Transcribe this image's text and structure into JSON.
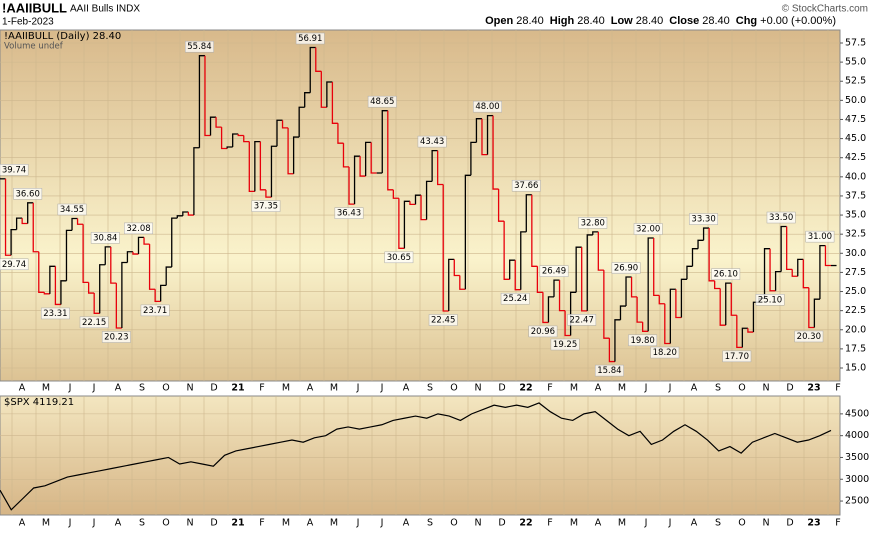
{
  "header": {
    "symbol": "!AAIIBULL",
    "name": "AAII Bulls INDX",
    "date": "1-Feb-2023",
    "ohlc": [
      "Open",
      "28.40",
      "High",
      "28.40",
      "Low",
      "28.40",
      "Close",
      "28.40",
      "Chg",
      "+0.00 (+0.00%)"
    ],
    "copyright": "© StockCharts.com"
  },
  "chart_data": [
    {
      "type": "step",
      "legend": [
        "!AAIIBULL (Daily) 28.40",
        "Volume undef"
      ],
      "up_color": "#000000",
      "down_color": "#e8000b",
      "months": [
        "A",
        "M",
        "J",
        "J",
        "A",
        "S",
        "O",
        "N",
        "D",
        "21",
        "F",
        "M",
        "A",
        "M",
        "J",
        "J",
        "A",
        "S",
        "O",
        "N",
        "D",
        "22",
        "F",
        "M",
        "A",
        "M",
        "J",
        "J",
        "A",
        "S",
        "O",
        "N",
        "D",
        "23",
        "F"
      ],
      "values": [
        39.74,
        29.74,
        33.1,
        34.6,
        33.9,
        36.6,
        30.2,
        24.9,
        24.7,
        28.3,
        23.31,
        26.4,
        33.0,
        34.55,
        33.8,
        26.2,
        24.8,
        22.15,
        28.5,
        30.84,
        26.1,
        20.23,
        28.8,
        30.2,
        29.9,
        32.08,
        31.2,
        25.3,
        23.71,
        25.8,
        28.2,
        34.6,
        34.9,
        35.4,
        35.0,
        43.8,
        55.84,
        45.4,
        47.8,
        46.5,
        43.7,
        43.9,
        45.6,
        45.4,
        44.6,
        38.1,
        44.6,
        38.3,
        37.35,
        44.0,
        47.4,
        46.4,
        40.4,
        45.2,
        49.1,
        51.0,
        56.91,
        53.8,
        49.1,
        52.4,
        47.0,
        44.4,
        41.3,
        36.43,
        42.7,
        40.1,
        44.5,
        40.5,
        40.5,
        48.65,
        38.3,
        37.2,
        30.65,
        36.8,
        36.4,
        37.6,
        34.4,
        39.4,
        43.43,
        39.0,
        22.45,
        29.2,
        27.1,
        25.3,
        40.2,
        44.5,
        47.6,
        42.9,
        48.0,
        38.4,
        34.2,
        26.6,
        29.1,
        25.24,
        32.8,
        37.66,
        28.3,
        24.9,
        20.96,
        24.3,
        26.49,
        22.5,
        19.25,
        24.9,
        30.8,
        22.47,
        32.4,
        32.8,
        27.8,
        18.9,
        15.84,
        21.3,
        23.1,
        26.9,
        24.3,
        21.0,
        19.8,
        32.0,
        24.5,
        23.4,
        18.2,
        25.3,
        21.6,
        26.6,
        28.3,
        30.6,
        31.7,
        33.3,
        26.4,
        25.4,
        20.6,
        26.1,
        21.9,
        17.7,
        20.2,
        19.7,
        23.6,
        24.1,
        30.6,
        25.1,
        27.6,
        33.5,
        27.9,
        27.0,
        29.2,
        25.5,
        20.3,
        24.0,
        31.0,
        28.4,
        28.4
      ],
      "value_labels": [
        "39.74",
        "29.74",
        null,
        null,
        null,
        "36.60",
        null,
        null,
        null,
        null,
        "23.31",
        null,
        null,
        "34.55",
        null,
        null,
        null,
        "22.15",
        null,
        "30.84",
        null,
        "20.23",
        null,
        null,
        null,
        "32.08",
        null,
        null,
        "23.71",
        null,
        null,
        null,
        null,
        null,
        null,
        null,
        "55.84",
        null,
        null,
        null,
        null,
        null,
        null,
        null,
        null,
        null,
        null,
        null,
        "37.35",
        null,
        null,
        null,
        null,
        null,
        null,
        null,
        "56.91",
        null,
        null,
        null,
        null,
        null,
        null,
        "36.43",
        null,
        null,
        null,
        null,
        null,
        "48.65",
        null,
        null,
        "30.65",
        null,
        null,
        null,
        null,
        null,
        "43.43",
        null,
        "22.45",
        null,
        null,
        null,
        null,
        null,
        null,
        null,
        "48.00",
        null,
        null,
        null,
        null,
        "25.24",
        null,
        "37.66",
        null,
        null,
        "20.96",
        null,
        "26.49",
        null,
        "19.25",
        null,
        null,
        "22.47",
        null,
        "32.80",
        null,
        null,
        "15.84",
        null,
        null,
        "26.90",
        null,
        null,
        "19.80",
        "32.00",
        null,
        null,
        "18.20",
        null,
        null,
        null,
        null,
        null,
        null,
        "33.30",
        null,
        null,
        null,
        "26.10",
        null,
        "17.70",
        null,
        null,
        null,
        null,
        null,
        "25.10",
        null,
        "33.50",
        null,
        null,
        null,
        null,
        "20.30",
        null,
        "31.00",
        null,
        null
      ],
      "ylim": [
        13.3,
        59.2
      ],
      "yticks": [
        {
          "value": 15,
          "label": "15.0"
        },
        {
          "value": 17.5,
          "label": "17.5"
        },
        {
          "value": 20,
          "label": "20.0"
        },
        {
          "value": 22.5,
          "label": "22.5"
        },
        {
          "value": 25,
          "label": "25.0"
        },
        {
          "value": 27.5,
          "label": "27.5"
        },
        {
          "value": 30,
          "label": "30.0"
        },
        {
          "value": 32.5,
          "label": "32.5"
        },
        {
          "value": 35,
          "label": "35.0"
        },
        {
          "value": 37.5,
          "label": "37.5"
        },
        {
          "value": 40,
          "label": "40.0"
        },
        {
          "value": 42.5,
          "label": "42.5"
        },
        {
          "value": 45,
          "label": "45.0"
        },
        {
          "value": 47.5,
          "label": "47.5"
        },
        {
          "value": 50,
          "label": "50.0"
        },
        {
          "value": 52.5,
          "label": "52.5"
        },
        {
          "value": 55,
          "label": "55.0"
        },
        {
          "value": 57.5,
          "label": "57.5"
        }
      ],
      "grid": true
    },
    {
      "type": "line",
      "legend": [
        "$SPX 4119.21"
      ],
      "color": "#000000",
      "values": [
        2750,
        2300,
        2550,
        2800,
        2850,
        2950,
        3050,
        3100,
        3150,
        3200,
        3250,
        3300,
        3350,
        3400,
        3450,
        3500,
        3350,
        3400,
        3350,
        3300,
        3550,
        3650,
        3700,
        3750,
        3800,
        3850,
        3900,
        3850,
        3950,
        4000,
        4150,
        4200,
        4150,
        4200,
        4250,
        4350,
        4400,
        4450,
        4400,
        4500,
        4450,
        4350,
        4500,
        4600,
        4700,
        4650,
        4700,
        4650,
        4750,
        4550,
        4400,
        4350,
        4500,
        4550,
        4350,
        4150,
        4000,
        4100,
        3800,
        3900,
        4100,
        4250,
        4100,
        3900,
        3650,
        3750,
        3600,
        3850,
        3950,
        4050,
        3950,
        3850,
        3900,
        4000,
        4119.21
      ],
      "ylim": [
        2180,
        4910
      ],
      "yticks": [
        2500,
        3000,
        3500,
        4000,
        4500
      ],
      "grid": true
    }
  ]
}
